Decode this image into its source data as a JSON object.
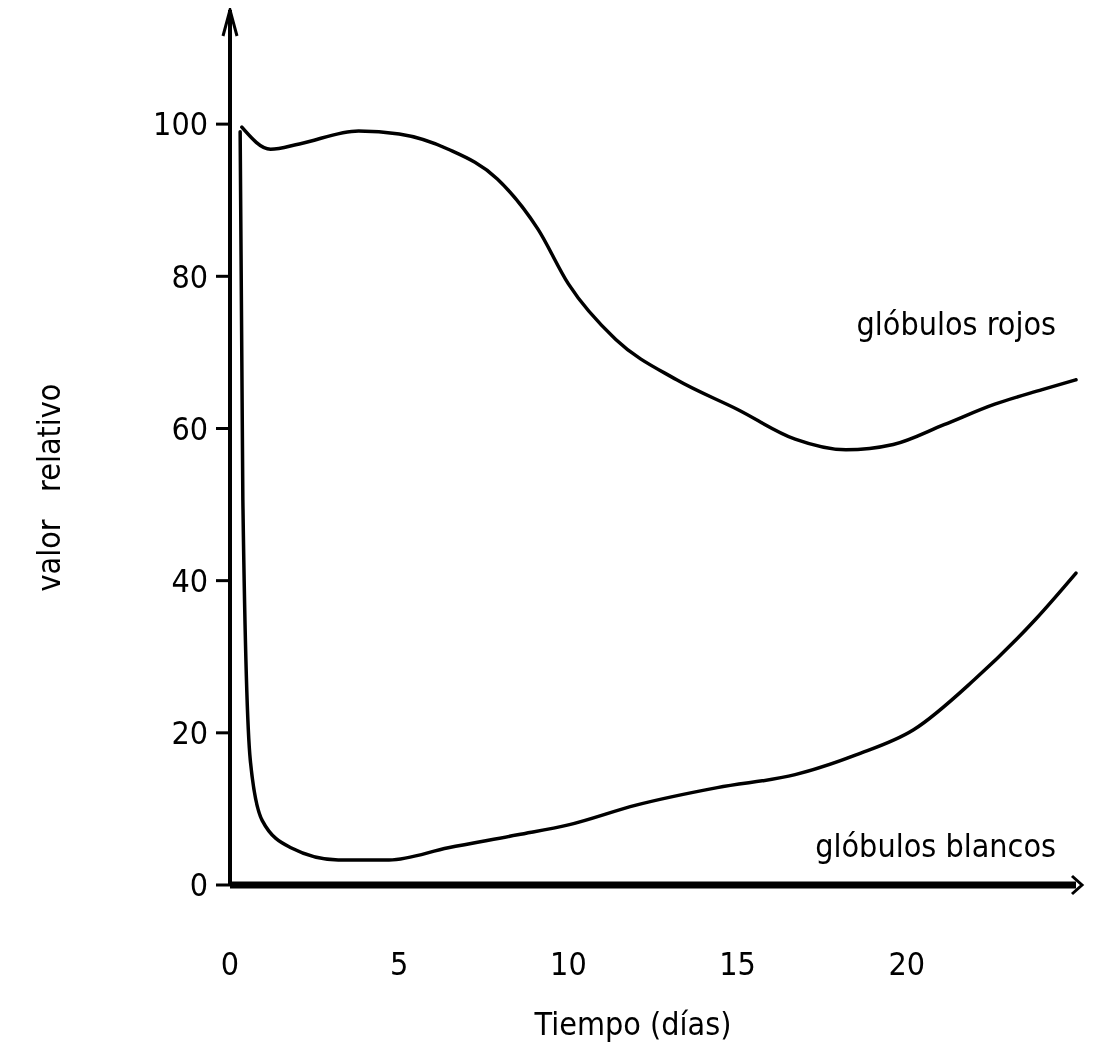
{
  "chart_data": {
    "type": "line",
    "xlabel": "Tiempo (días)",
    "ylabel": "valor   relativo",
    "xlim": [
      0,
      25
    ],
    "ylim": [
      0,
      115
    ],
    "xticks": [
      0,
      5,
      10,
      15,
      20
    ],
    "yticks": [
      0,
      20,
      40,
      60,
      80,
      100
    ],
    "grid": false,
    "legend": false,
    "marker": "none",
    "line_style": "solid",
    "series": [
      {
        "name": "glóbulos rojos",
        "color": "#000000",
        "x": [
          0.35,
          1.2,
          2.05,
          3.8,
          5,
          6.45,
          7.9,
          9.1,
          10,
          11.4,
          13.2,
          15,
          16.7,
          18.2,
          19.6,
          21.1,
          22.6,
          24,
          25
        ],
        "values": [
          99.6,
          96.7,
          97.4,
          99.1,
          98.7,
          96.7,
          92.8,
          86.2,
          79,
          71.7,
          66.4,
          62.5,
          58.6,
          57.2,
          57.9,
          60.5,
          63.2,
          65.1,
          66.4
        ]
      },
      {
        "name": "glóbulos blancos",
        "color": "#000000",
        "x": [
          0.3,
          0.38,
          0.6,
          0.95,
          1.8,
          3.2,
          4.7,
          6.45,
          8.5,
          10,
          12,
          14.4,
          16.7,
          18.5,
          20.2,
          22,
          23.8,
          25
        ],
        "values": [
          99,
          50.6,
          16.4,
          8.5,
          4.9,
          3.3,
          3.3,
          4.9,
          6.6,
          7.9,
          10.5,
          12.8,
          14.5,
          17.1,
          20.4,
          27,
          34.9,
          41
        ]
      }
    ]
  }
}
